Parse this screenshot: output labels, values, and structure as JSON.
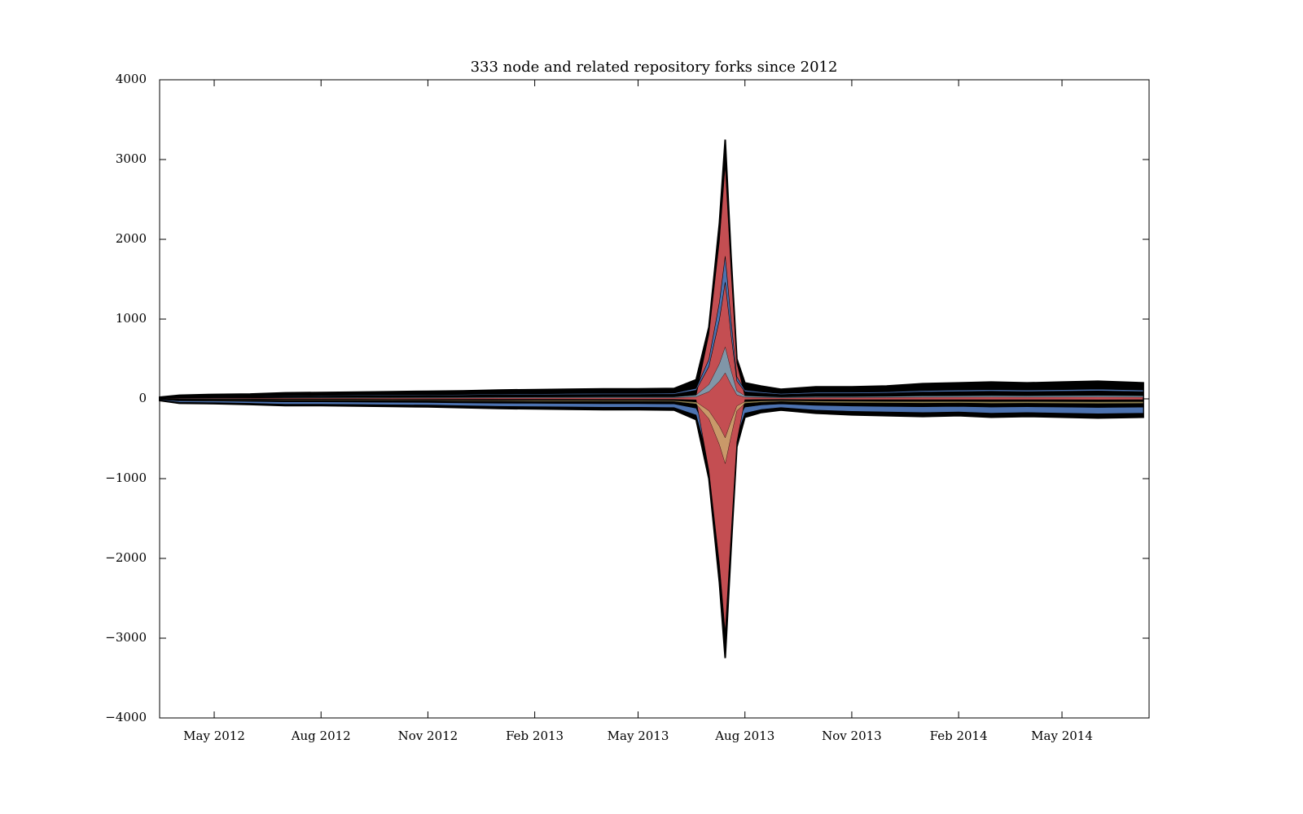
{
  "chart_data": {
    "type": "area",
    "subtype": "streamgraph",
    "title": "333 node and related repository forks since 2012",
    "xlabel": "",
    "ylabel": "",
    "x_tick_labels": [
      "May 2012",
      "Aug 2012",
      "Nov 2012",
      "Feb 2013",
      "May 2013",
      "Aug 2013",
      "Nov 2013",
      "Feb 2014",
      "May 2014"
    ],
    "x_tick_dates": [
      "2012-05-01",
      "2012-08-01",
      "2012-11-01",
      "2013-02-01",
      "2013-05-01",
      "2013-08-01",
      "2013-11-01",
      "2014-02-01",
      "2014-05-01"
    ],
    "xlim": [
      "2012-03-15",
      "2014-07-15"
    ],
    "ylim": [
      -4000,
      4000
    ],
    "y_ticks": [
      4000,
      3000,
      2000,
      1000,
      0,
      -1000,
      -2000,
      -3000,
      -4000
    ],
    "y_tick_labels": [
      "4000",
      "3000",
      "2000",
      "1000",
      "0",
      "−1000",
      "−2000",
      "−3000",
      "−4000"
    ],
    "grid": false,
    "legend": "none",
    "series_count": 333,
    "series_colors": [
      "#c44e52",
      "#4c72b0",
      "#64b5cd",
      "#ccb974",
      "#55a868",
      "#8172b2"
    ],
    "edge_color": "#000000",
    "envelope": {
      "x": [
        "2012-03-15",
        "2012-04-01",
        "2012-05-01",
        "2012-06-01",
        "2012-07-01",
        "2012-08-01",
        "2012-09-01",
        "2012-10-01",
        "2012-11-01",
        "2012-12-01",
        "2013-01-01",
        "2013-02-01",
        "2013-03-01",
        "2013-04-01",
        "2013-05-01",
        "2013-06-01",
        "2013-06-20",
        "2013-07-01",
        "2013-07-10",
        "2013-07-15",
        "2013-07-20",
        "2013-07-25",
        "2013-08-01",
        "2013-08-15",
        "2013-09-01",
        "2013-10-01",
        "2013-11-01",
        "2013-12-01",
        "2014-01-01",
        "2014-02-01",
        "2014-03-01",
        "2014-04-01",
        "2014-05-01",
        "2014-06-01",
        "2014-07-10"
      ],
      "upper": [
        20,
        45,
        55,
        60,
        75,
        80,
        85,
        90,
        95,
        100,
        110,
        115,
        120,
        125,
        125,
        130,
        240,
        900,
        2200,
        3250,
        1800,
        500,
        200,
        160,
        120,
        150,
        150,
        160,
        190,
        200,
        210,
        200,
        210,
        220,
        200
      ],
      "lower": [
        -20,
        -55,
        -60,
        -70,
        -85,
        -85,
        -90,
        -95,
        -100,
        -110,
        -120,
        -125,
        -130,
        -135,
        -135,
        -140,
        -260,
        -1000,
        -2300,
        -3250,
        -1900,
        -600,
        -230,
        -170,
        -140,
        -180,
        -200,
        -210,
        -220,
        -210,
        -230,
        -220,
        -230,
        -240,
        -230
      ]
    }
  }
}
